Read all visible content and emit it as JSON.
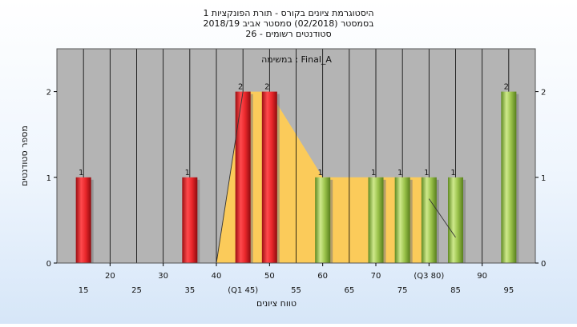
{
  "chart_data": {
    "type": "bar",
    "title_lines": [
      "היסטוגרמת ציונים בקורס - תורת הפונקציות 1",
      "בסמסטר  (02/2018)  סמסטר אביב 2018/19",
      "סטודנטים רשומים - 26"
    ],
    "subtitle": "במשימה : Final_A",
    "xlabel": "טווח ציונים",
    "ylabel": "מספר סטודנטים",
    "xlim": [
      10,
      100
    ],
    "ylim": [
      0,
      2.5
    ],
    "y_ticks": [
      0,
      1,
      2
    ],
    "x_ticks_row1": [
      {
        "x": 20,
        "label": "20"
      },
      {
        "x": 30,
        "label": "30"
      },
      {
        "x": 40,
        "label": "40"
      },
      {
        "x": 50,
        "label": "50"
      },
      {
        "x": 60,
        "label": "60"
      },
      {
        "x": 70,
        "label": "70"
      },
      {
        "x": 80,
        "label": "(Q3 80)"
      },
      {
        "x": 90,
        "label": "90"
      }
    ],
    "x_ticks_row2": [
      {
        "x": 15,
        "label": "15"
      },
      {
        "x": 25,
        "label": "25"
      },
      {
        "x": 35,
        "label": "35"
      },
      {
        "x": 45,
        "label": "(Q1 45)"
      },
      {
        "x": 55,
        "label": "55"
      },
      {
        "x": 65,
        "label": "65"
      },
      {
        "x": 75,
        "label": "75"
      },
      {
        "x": 85,
        "label": "85"
      },
      {
        "x": 95,
        "label": "95"
      }
    ],
    "bars": [
      {
        "x": 15,
        "value": 1,
        "group": "red"
      },
      {
        "x": 35,
        "value": 1,
        "group": "red"
      },
      {
        "x": 45,
        "value": 2,
        "group": "red"
      },
      {
        "x": 50,
        "value": 2,
        "group": "red"
      },
      {
        "x": 60,
        "value": 1,
        "group": "green"
      },
      {
        "x": 70,
        "value": 1,
        "group": "green"
      },
      {
        "x": 75,
        "value": 1,
        "group": "green"
      },
      {
        "x": 80,
        "value": 1,
        "group": "green"
      },
      {
        "x": 85,
        "value": 1,
        "group": "green"
      },
      {
        "x": 95,
        "value": 2,
        "group": "green"
      }
    ],
    "iqr_band": {
      "points": [
        [
          40,
          0
        ],
        [
          45,
          2
        ],
        [
          50,
          2
        ],
        [
          60,
          1
        ],
        [
          80,
          1
        ],
        [
          80,
          0
        ]
      ],
      "color": "#ffcc55"
    },
    "trend_lines": [
      [
        [
          40,
          0
        ],
        [
          45,
          2
        ]
      ],
      [
        [
          80,
          0.75
        ],
        [
          85,
          0.3
        ]
      ]
    ],
    "colors": {
      "plot_bg": "#b4b4b4",
      "grid": "#000000",
      "red": "#e8262a",
      "green": "#9ac24a"
    },
    "grid": true
  }
}
